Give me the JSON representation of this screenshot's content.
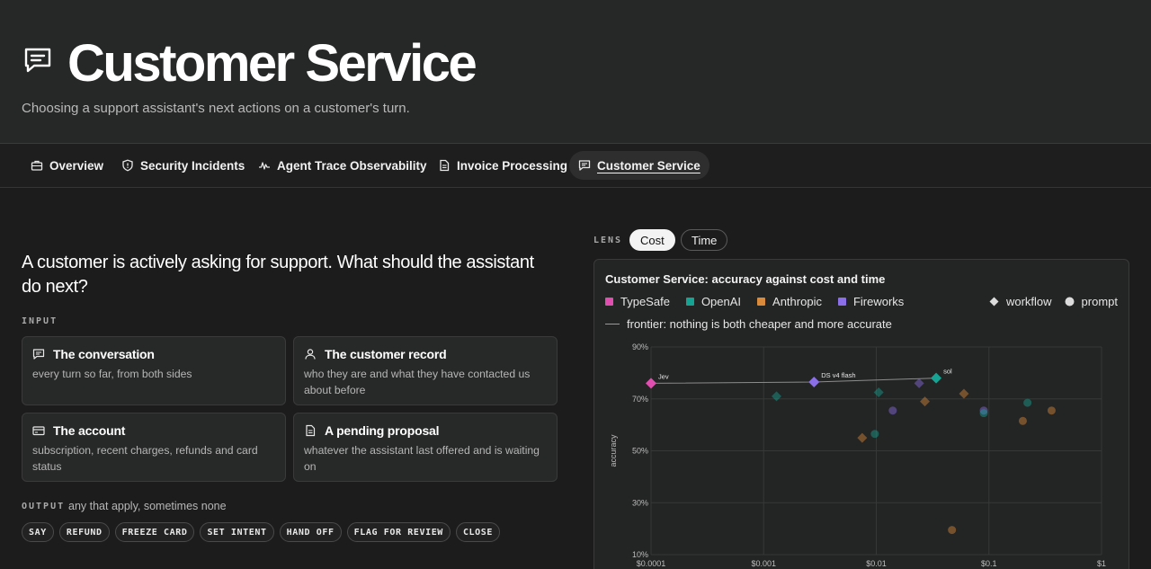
{
  "hero": {
    "title": "Customer Service",
    "subtitle": "Choosing a support assistant's next actions on a customer's turn.",
    "icon": "message-square-icon"
  },
  "tabs": [
    {
      "label": "Overview",
      "icon": "briefcase-icon",
      "active": false
    },
    {
      "label": "Security Incidents",
      "icon": "shield-icon",
      "active": false
    },
    {
      "label": "Agent Trace Observability",
      "icon": "activity-icon",
      "active": false
    },
    {
      "label": "Invoice Processing",
      "icon": "file-icon",
      "active": false
    },
    {
      "label": "Customer Service",
      "icon": "message-square-icon",
      "active": true
    }
  ],
  "main": {
    "question": "A customer is actively asking for support. What should the assistant do next?",
    "input_label": "INPUT",
    "inputs": [
      {
        "title": "The conversation",
        "desc": "every turn so far, from both sides",
        "icon": "message-square-icon"
      },
      {
        "title": "The customer record",
        "desc": "who they are and what they have contacted us about before",
        "icon": "user-icon"
      },
      {
        "title": "The account",
        "desc": "subscription, recent charges, refunds and card status",
        "icon": "credit-card-icon"
      },
      {
        "title": "A pending proposal",
        "desc": "whatever the assistant last offered and is waiting on",
        "icon": "file-text-icon"
      }
    ],
    "output_label": "OUTPUT",
    "output_note": "any that apply, sometimes none",
    "outputs": [
      "SAY",
      "REFUND",
      "FREEZE CARD",
      "SET INTENT",
      "HAND OFF",
      "FLAG FOR REVIEW",
      "CLOSE"
    ]
  },
  "lens": {
    "label": "LENS",
    "options": [
      {
        "label": "Cost",
        "selected": true
      },
      {
        "label": "Time",
        "selected": false
      }
    ]
  },
  "chart_data": {
    "type": "scatter",
    "title": "Customer Service: accuracy against cost and time",
    "xlabel": "",
    "ylabel": "accuracy",
    "x_scale": "log",
    "xlim": [
      0.0001,
      1
    ],
    "ylim": [
      10,
      90
    ],
    "x_ticks": [
      "$0.0001",
      "$0.001",
      "$0.01",
      "$0.1",
      "$1"
    ],
    "y_ticks": [
      "10%",
      "30%",
      "50%",
      "70%",
      "90%"
    ],
    "legend": [
      {
        "name": "TypeSafe",
        "color": "#e04fb0"
      },
      {
        "name": "OpenAI",
        "color": "#17a394"
      },
      {
        "name": "Anthropic",
        "color": "#d98a3a"
      },
      {
        "name": "Fireworks",
        "color": "#8a6fe8"
      }
    ],
    "shape_legend": [
      "workflow",
      "prompt"
    ],
    "frontier_label": "frontier: nothing is both cheaper and more accurate",
    "points": [
      {
        "x": 0.0001,
        "y": 76,
        "provider": "TypeSafe",
        "kind": "workflow",
        "frontier": true,
        "label": "Jev"
      },
      {
        "x": 0.0028,
        "y": 76.5,
        "provider": "Fireworks",
        "kind": "workflow",
        "frontier": true,
        "label": "DS v4 flash"
      },
      {
        "x": 0.034,
        "y": 78,
        "provider": "OpenAI",
        "kind": "workflow",
        "frontier": true,
        "label": "sol"
      },
      {
        "x": 0.0013,
        "y": 71,
        "provider": "OpenAI",
        "kind": "workflow",
        "frontier": false,
        "label": ""
      },
      {
        "x": 0.0105,
        "y": 72.5,
        "provider": "OpenAI",
        "kind": "workflow",
        "frontier": false,
        "label": ""
      },
      {
        "x": 0.024,
        "y": 76,
        "provider": "Fireworks",
        "kind": "workflow",
        "frontier": false,
        "label": ""
      },
      {
        "x": 0.027,
        "y": 69,
        "provider": "Anthropic",
        "kind": "workflow",
        "frontier": false,
        "label": ""
      },
      {
        "x": 0.06,
        "y": 72,
        "provider": "Anthropic",
        "kind": "workflow",
        "frontier": false,
        "label": ""
      },
      {
        "x": 0.0075,
        "y": 55,
        "provider": "Anthropic",
        "kind": "workflow",
        "frontier": false,
        "label": ""
      },
      {
        "x": 0.014,
        "y": 65.5,
        "provider": "Fireworks",
        "kind": "prompt",
        "frontier": false,
        "label": ""
      },
      {
        "x": 0.0097,
        "y": 56.5,
        "provider": "OpenAI",
        "kind": "prompt",
        "frontier": false,
        "label": ""
      },
      {
        "x": 0.09,
        "y": 65.5,
        "provider": "Fireworks",
        "kind": "prompt",
        "frontier": false,
        "label": ""
      },
      {
        "x": 0.09,
        "y": 64.5,
        "provider": "OpenAI",
        "kind": "prompt",
        "frontier": false,
        "label": ""
      },
      {
        "x": 0.22,
        "y": 68.5,
        "provider": "OpenAI",
        "kind": "prompt",
        "frontier": false,
        "label": ""
      },
      {
        "x": 0.2,
        "y": 61.5,
        "provider": "Anthropic",
        "kind": "prompt",
        "frontier": false,
        "label": ""
      },
      {
        "x": 0.36,
        "y": 65.5,
        "provider": "Anthropic",
        "kind": "prompt",
        "frontier": false,
        "label": ""
      },
      {
        "x": 0.047,
        "y": 19.5,
        "provider": "Anthropic",
        "kind": "prompt",
        "frontier": false,
        "label": ""
      }
    ]
  }
}
